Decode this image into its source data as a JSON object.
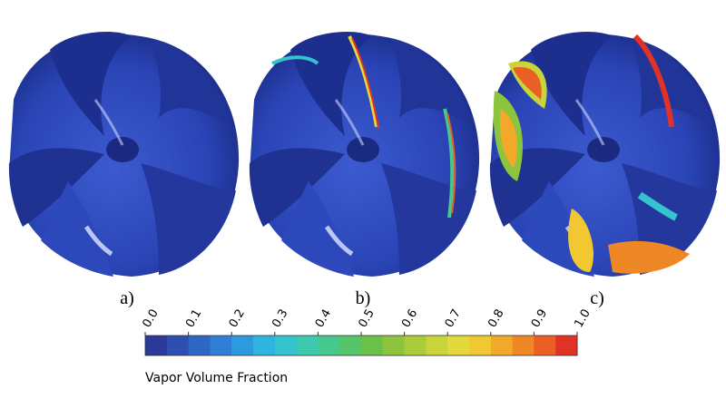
{
  "panels": [
    {
      "label": "a)"
    },
    {
      "label": "b)"
    },
    {
      "label": "c)"
    }
  ],
  "colorbar": {
    "label": "Vapor Volume Fraction",
    "range": [
      0,
      1
    ],
    "ticks": [
      {
        "value": 0,
        "label": "0.0"
      },
      {
        "value": 0.1,
        "label": "0.1"
      },
      {
        "value": 0.2,
        "label": "0.2"
      },
      {
        "value": 0.3,
        "label": "0.3"
      },
      {
        "value": 0.4,
        "label": "0.4"
      },
      {
        "value": 0.5,
        "label": "0.5"
      },
      {
        "value": 0.6,
        "label": "0.6"
      },
      {
        "value": 0.7,
        "label": "0.7"
      },
      {
        "value": 0.8,
        "label": "0.8"
      },
      {
        "value": 0.9,
        "label": "0.9"
      },
      {
        "value": 1,
        "label": "1.0"
      }
    ],
    "colors": [
      "#2b3a9a",
      "#2d50b0",
      "#2e66c4",
      "#2f7fd6",
      "#2d9ae0",
      "#2fb3e0",
      "#35c4cf",
      "#3cc9b0",
      "#45c98e",
      "#55c46a",
      "#6cc14a",
      "#8cc43e",
      "#aacb3a",
      "#c8d43a",
      "#e3d93a",
      "#f1c831",
      "#f2a92a",
      "#ee8726",
      "#ea6024",
      "#e03226"
    ]
  }
}
